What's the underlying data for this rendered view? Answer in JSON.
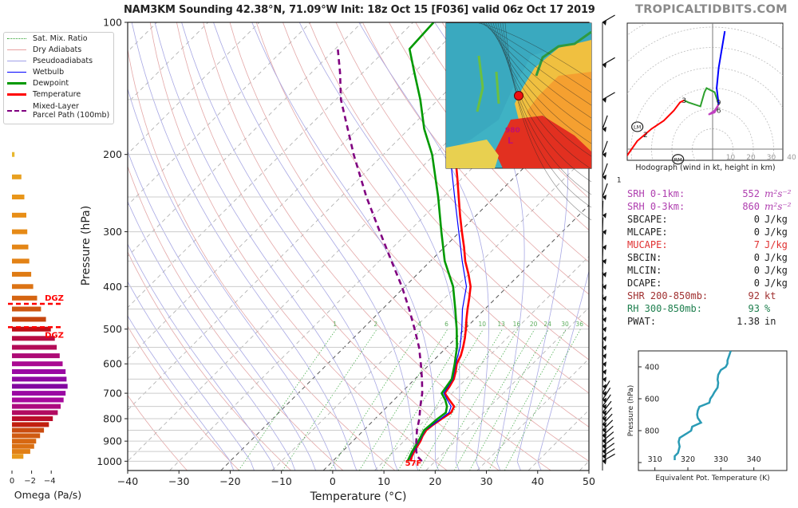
{
  "header": {
    "title": "NAM3KM Sounding 42.38°N, 71.09°W Init: 18z Oct 15 [F036] valid 06z Oct 17 2019",
    "brand": "TROPICALTIDBITS.COM"
  },
  "legend": {
    "items": [
      {
        "label": "Sat. Mix. Ratio",
        "color": "#2ca02c",
        "style": "dotted"
      },
      {
        "label": "Dry Adiabats",
        "color": "#e8a0a0",
        "style": "solid-thin"
      },
      {
        "label": "Pseudoadiabats",
        "color": "#a0a0e8",
        "style": "solid-thin"
      },
      {
        "label": "Wetbulb",
        "color": "#0000ff",
        "style": "solid"
      },
      {
        "label": "Dewpoint",
        "color": "#009900",
        "style": "solid-thick"
      },
      {
        "label": "Temperature",
        "color": "#ff0000",
        "style": "solid-thick"
      },
      {
        "label": "Mixed-Layer",
        "label2": "Parcel Path (100mb)",
        "color": "#800080",
        "style": "dashed"
      }
    ]
  },
  "chart_data": [
    {
      "type": "line",
      "name": "skew-t",
      "title": "NAM3KM Sounding 42.38°N, 71.09°W Init: 18z Oct 15 [F036] valid 06z Oct 17 2019",
      "xlabel": "Temperature (°C)",
      "ylabel": "Pressure (hPa)",
      "xlim": [
        -40,
        50
      ],
      "ylim": [
        1050,
        100
      ],
      "xticks": [
        -40,
        -30,
        -20,
        -10,
        0,
        10,
        20,
        30,
        40,
        50
      ],
      "yticks": [
        100,
        200,
        300,
        400,
        500,
        600,
        700,
        800,
        900,
        1000
      ],
      "grid": true,
      "legend_position": "left-outside",
      "mixing_ratio_labels": [
        "1",
        "2",
        "4",
        "6",
        "8",
        "10",
        "13",
        "16",
        "20",
        "24",
        "30",
        "36"
      ],
      "surface_label": "57F",
      "series": [
        {
          "name": "Temperature",
          "color": "#ff0000",
          "points": [
            [
              1000,
              15.2
            ],
            [
              975,
              14.5
            ],
            [
              950,
              14.0
            ],
            [
              925,
              13.6
            ],
            [
              900,
              13.2
            ],
            [
              875,
              12.6
            ],
            [
              850,
              12.2
            ],
            [
              825,
              12.5
            ],
            [
              800,
              13.0
            ],
            [
              775,
              13.6
            ],
            [
              750,
              13.0
            ],
            [
              725,
              10.8
            ],
            [
              700,
              8.6
            ],
            [
              675,
              8.2
            ],
            [
              650,
              7.6
            ],
            [
              625,
              6.5
            ],
            [
              600,
              5.2
            ],
            [
              575,
              4.4
            ],
            [
              550,
              3.2
            ],
            [
              525,
              1.8
            ],
            [
              500,
              0.2
            ],
            [
              475,
              -1.6
            ],
            [
              450,
              -3.4
            ],
            [
              425,
              -5.2
            ],
            [
              400,
              -7.2
            ],
            [
              375,
              -10.0
            ],
            [
              350,
              -13.2
            ],
            [
              325,
              -16.2
            ],
            [
              300,
              -19.6
            ],
            [
              275,
              -23.2
            ],
            [
              250,
              -27.0
            ],
            [
              225,
              -31.2
            ],
            [
              200,
              -36.0
            ],
            [
              175,
              -42.0
            ],
            [
              150,
              -47.0
            ],
            [
              130,
              -50.5
            ],
            [
              115,
              -53.5
            ],
            [
              100,
              -56.0
            ]
          ]
        },
        {
          "name": "Wetbulb",
          "color": "#0000ff",
          "points": [
            [
              1000,
              14.8
            ],
            [
              950,
              13.8
            ],
            [
              900,
              13.0
            ],
            [
              850,
              12.0
            ],
            [
              800,
              12.8
            ],
            [
              775,
              13.2
            ],
            [
              750,
              12.4
            ],
            [
              725,
              10.4
            ],
            [
              700,
              8.4
            ],
            [
              650,
              7.4
            ],
            [
              600,
              5.0
            ],
            [
              550,
              2.6
            ],
            [
              500,
              -0.6
            ],
            [
              450,
              -4.4
            ],
            [
              400,
              -8.0
            ],
            [
              350,
              -13.8
            ],
            [
              300,
              -20.2
            ],
            [
              250,
              -27.8
            ],
            [
              200,
              -37.0
            ],
            [
              150,
              -48.0
            ],
            [
              100,
              -56.6
            ]
          ]
        },
        {
          "name": "Dewpoint",
          "color": "#009900",
          "points": [
            [
              1000,
              14.6
            ],
            [
              950,
              13.6
            ],
            [
              900,
              12.8
            ],
            [
              850,
              11.8
            ],
            [
              800,
              12.2
            ],
            [
              775,
              12.6
            ],
            [
              750,
              11.6
            ],
            [
              725,
              10.0
            ],
            [
              700,
              8.0
            ],
            [
              650,
              7.2
            ],
            [
              600,
              4.8
            ],
            [
              550,
              2.0
            ],
            [
              500,
              -1.6
            ],
            [
              450,
              -5.8
            ],
            [
              400,
              -10.6
            ],
            [
              350,
              -17.2
            ],
            [
              300,
              -23.6
            ],
            [
              250,
              -31.0
            ],
            [
              200,
              -40.5
            ],
            [
              175,
              -47.0
            ],
            [
              150,
              -53.5
            ],
            [
              130,
              -60.0
            ],
            [
              115,
              -65.5
            ],
            [
              100,
              -66.0
            ]
          ]
        },
        {
          "name": "Mixed-Layer Parcel Path (100mb)",
          "color": "#800080",
          "dashed": true,
          "points": [
            [
              1000,
              17.4
            ],
            [
              975,
              15.6
            ],
            [
              950,
              14.4
            ],
            [
              925,
              13.4
            ],
            [
              900,
              12.4
            ],
            [
              850,
              10.4
            ],
            [
              800,
              8.6
            ],
            [
              750,
              6.4
            ],
            [
              700,
              4.2
            ],
            [
              650,
              1.4
            ],
            [
              600,
              -1.8
            ],
            [
              550,
              -5.4
            ],
            [
              500,
              -9.8
            ],
            [
              450,
              -14.8
            ],
            [
              400,
              -20.6
            ],
            [
              350,
              -27.6
            ],
            [
              300,
              -35.6
            ],
            [
              250,
              -45.0
            ],
            [
              200,
              -55.8
            ],
            [
              150,
              -69.0
            ],
            [
              130,
              -74.5
            ],
            [
              115,
              -79.5
            ]
          ]
        }
      ]
    },
    {
      "type": "bar",
      "name": "omega",
      "xlabel": "Omega (Pa/s)",
      "xticks": [
        "0",
        "−2",
        "−4"
      ],
      "xlim": [
        0,
        -5
      ],
      "annotations": [
        {
          "label": "DGZ",
          "pressure": 438
        },
        {
          "label": "DGZ",
          "pressure": 495
        }
      ],
      "pressures": [
        200,
        225,
        250,
        275,
        300,
        325,
        350,
        375,
        400,
        425,
        450,
        475,
        500,
        525,
        550,
        575,
        600,
        625,
        650,
        675,
        700,
        725,
        750,
        775,
        800,
        825,
        850,
        875,
        900,
        925,
        950,
        975
      ],
      "values": [
        -0.1,
        -0.8,
        -1.1,
        -1.3,
        -1.4,
        -1.5,
        -1.6,
        -1.8,
        -2.0,
        -2.4,
        -2.8,
        -3.3,
        -3.8,
        -4.2,
        -4.4,
        -4.7,
        -5.0,
        -5.3,
        -5.4,
        -5.5,
        -5.3,
        -5.1,
        -4.8,
        -4.5,
        -4.0,
        -3.6,
        -3.1,
        -2.7,
        -2.3,
        -2.1,
        -1.7,
        -1.0
      ]
    },
    {
      "type": "line",
      "name": "hodograph",
      "title": "Hodograph (wind in kt, height in km)",
      "ring_labels": [
        "10",
        "20",
        "30",
        "40"
      ],
      "height_labels": [
        "1",
        "2",
        "3",
        "6",
        "9"
      ],
      "storm_markers": [
        "LM",
        "RM"
      ],
      "segments": [
        {
          "name": "0-3km",
          "color": "#ff0000",
          "points": [
            [
              -25,
              -37
            ],
            [
              -35,
              -35
            ],
            [
              -42,
              -31
            ],
            [
              -45,
              -24
            ],
            [
              -46,
              -15
            ],
            [
              -44,
              -6
            ],
            [
              -37,
              4
            ],
            [
              -30,
              10
            ],
            [
              -24,
              14
            ],
            [
              -19,
              19
            ],
            [
              -16,
              23
            ],
            [
              -14,
              24
            ]
          ]
        },
        {
          "name": "3-6km",
          "color": "#2ca02c",
          "points": [
            [
              -14,
              24
            ],
            [
              -12,
              23
            ],
            [
              -6,
              21
            ],
            [
              -4,
              28
            ],
            [
              -3,
              30
            ],
            [
              1,
              28
            ],
            [
              3,
              22
            ]
          ]
        },
        {
          "name": "6-9km",
          "color": "#bf40bf",
          "points": [
            [
              3,
              22
            ],
            [
              1,
              19
            ],
            [
              -2,
              17
            ],
            [
              1,
              18
            ],
            [
              3,
              22
            ]
          ]
        },
        {
          "name": "9-12km",
          "color": "#0000ff",
          "points": [
            [
              3,
              22
            ],
            [
              2,
              30
            ],
            [
              3,
              40
            ],
            [
              6,
              58
            ]
          ]
        }
      ],
      "labels": [
        {
          "t": "1",
          "u": -46,
          "v": -15
        },
        {
          "t": "2",
          "u": -33,
          "v": 7
        },
        {
          "t": "3",
          "u": -14,
          "v": 24
        },
        {
          "t": "6",
          "u": 3,
          "v": 19
        },
        {
          "t": "9",
          "u": 3,
          "v": 23
        }
      ],
      "lm": [
        -37,
        11
      ],
      "rm": [
        -17,
        -5
      ]
    },
    {
      "type": "line",
      "name": "theta-e",
      "xlabel": "Equivalent Pot. Temperature (K)",
      "ylabel": "Pressure (hPa)",
      "xticks": [
        310,
        320,
        330,
        340
      ],
      "yticks": [
        400,
        600,
        800
      ],
      "xlim": [
        305,
        350
      ],
      "ylim": [
        1000,
        300
      ],
      "color": "#2a9bb5",
      "points": [
        [
          985,
          316
        ],
        [
          960,
          316
        ],
        [
          940,
          317
        ],
        [
          900,
          317.5
        ],
        [
          870,
          317.2
        ],
        [
          845,
          317.5
        ],
        [
          820,
          319.5
        ],
        [
          800,
          321
        ],
        [
          775,
          321.3
        ],
        [
          750,
          324
        ],
        [
          720,
          323
        ],
        [
          700,
          322.8
        ],
        [
          675,
          323
        ],
        [
          650,
          323.5
        ],
        [
          625,
          326.5
        ],
        [
          600,
          326.8
        ],
        [
          580,
          327.5
        ],
        [
          560,
          328
        ],
        [
          530,
          329
        ],
        [
          500,
          329.2
        ],
        [
          480,
          329
        ],
        [
          450,
          329.2
        ],
        [
          420,
          330
        ],
        [
          400,
          331.5
        ],
        [
          380,
          332
        ],
        [
          360,
          332
        ],
        [
          330,
          332.5
        ],
        [
          300,
          333
        ]
      ]
    }
  ],
  "stats": [
    {
      "label": "SRH 0-1km:",
      "value": "552",
      "unit": "m²s⁻²",
      "color": "#b040b0"
    },
    {
      "label": "SRH 0-3km:",
      "value": "860",
      "unit": "m²s⁻²",
      "color": "#b040b0"
    },
    {
      "label": "SBCAPE:",
      "value": "0",
      "unit": "J/kg",
      "color": "#222222"
    },
    {
      "label": "MLCAPE:",
      "value": "0",
      "unit": "J/kg",
      "color": "#222222"
    },
    {
      "label": "MUCAPE:",
      "value": "7",
      "unit": "J/kg",
      "color": "#e03030"
    },
    {
      "label": "SBCIN:",
      "value": "0",
      "unit": "J/kg",
      "color": "#222222"
    },
    {
      "label": "MLCIN:",
      "value": "0",
      "unit": "J/kg",
      "color": "#222222"
    },
    {
      "label": "DCAPE:",
      "value": "0",
      "unit": "J/kg",
      "color": "#222222"
    },
    {
      "label": "SHR 200-850mb:",
      "value": "92",
      "unit": "kt",
      "color": "#a03030"
    },
    {
      "label": "RH 300-850mb:",
      "value": "93",
      "unit": "%",
      "color": "#208050"
    },
    {
      "label": "PWAT:",
      "value": "1.38",
      "unit": "in",
      "color": "#222222"
    }
  ],
  "map_inset": {
    "pressure_label": "980",
    "low_label": "L"
  }
}
